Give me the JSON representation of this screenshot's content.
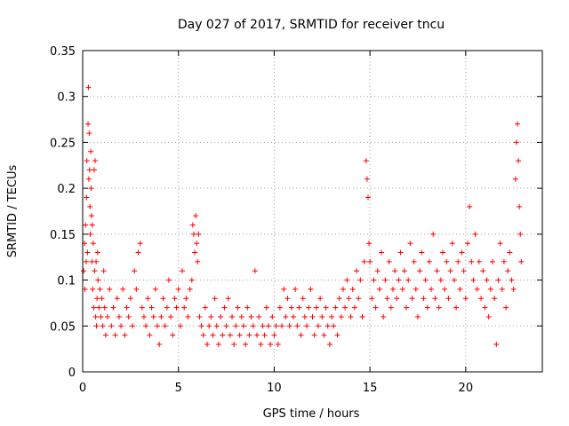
{
  "chart_data": {
    "type": "scatter",
    "title": "Day 027 of 2017, SRMTID for receiver tncu",
    "xlabel": "GPS time / hours",
    "ylabel": "SRMTID / TECUs",
    "xlim": [
      0,
      24
    ],
    "ylim": [
      0,
      0.35
    ],
    "xticks": [
      0,
      5,
      10,
      15,
      20
    ],
    "xtick_labels": [
      "0",
      "5",
      "10",
      "15",
      "20"
    ],
    "yticks": [
      0,
      0.05,
      0.1,
      0.15,
      0.2,
      0.25,
      0.3,
      0.35
    ],
    "ytick_labels": [
      "0",
      "0.05",
      "0.1",
      "0.15",
      "0.2",
      "0.25",
      "0.3",
      "0.35"
    ],
    "grid": true,
    "marker": "+",
    "color": "#ff0000",
    "series": [
      {
        "name": "SRMTID",
        "points": [
          [
            0.05,
            0.11
          ],
          [
            0.1,
            0.14
          ],
          [
            0.12,
            0.09
          ],
          [
            0.15,
            0.16
          ],
          [
            0.18,
            0.12
          ],
          [
            0.2,
            0.19
          ],
          [
            0.22,
            0.23
          ],
          [
            0.25,
            0.13
          ],
          [
            0.28,
            0.27
          ],
          [
            0.3,
            0.31
          ],
          [
            0.32,
            0.21
          ],
          [
            0.34,
            0.26
          ],
          [
            0.36,
            0.22
          ],
          [
            0.38,
            0.18
          ],
          [
            0.4,
            0.15
          ],
          [
            0.42,
            0.24
          ],
          [
            0.44,
            0.2
          ],
          [
            0.46,
            0.17
          ],
          [
            0.48,
            0.12
          ],
          [
            0.5,
            0.16
          ],
          [
            0.52,
            0.09
          ],
          [
            0.55,
            0.14
          ],
          [
            0.58,
            0.07
          ],
          [
            0.6,
            0.22
          ],
          [
            0.62,
            0.11
          ],
          [
            0.65,
            0.23
          ],
          [
            0.68,
            0.06
          ],
          [
            0.7,
            0.12
          ],
          [
            0.72,
            0.05
          ],
          [
            0.75,
            0.08
          ],
          [
            0.78,
            0.13
          ],
          [
            0.8,
            0.1
          ],
          [
            0.85,
            0.07
          ],
          [
            0.9,
            0.09
          ],
          [
            0.95,
            0.06
          ],
          [
            1.0,
            0.08
          ],
          [
            1.05,
            0.05
          ],
          [
            1.1,
            0.11
          ],
          [
            1.15,
            0.07
          ],
          [
            1.2,
            0.04
          ],
          [
            1.3,
            0.06
          ],
          [
            1.4,
            0.09
          ],
          [
            1.5,
            0.05
          ],
          [
            1.6,
            0.07
          ],
          [
            1.7,
            0.04
          ],
          [
            1.8,
            0.08
          ],
          [
            1.9,
            0.06
          ],
          [
            2.0,
            0.05
          ],
          [
            2.1,
            0.09
          ],
          [
            2.2,
            0.04
          ],
          [
            2.3,
            0.07
          ],
          [
            2.4,
            0.06
          ],
          [
            2.5,
            0.08
          ],
          [
            2.6,
            0.05
          ],
          [
            2.7,
            0.11
          ],
          [
            2.8,
            0.09
          ],
          [
            2.9,
            0.13
          ],
          [
            3.0,
            0.14
          ],
          [
            3.1,
            0.07
          ],
          [
            3.2,
            0.06
          ],
          [
            3.3,
            0.05
          ],
          [
            3.4,
            0.08
          ],
          [
            3.5,
            0.04
          ],
          [
            3.6,
            0.07
          ],
          [
            3.7,
            0.06
          ],
          [
            3.8,
            0.09
          ],
          [
            3.9,
            0.05
          ],
          [
            4.0,
            0.03
          ],
          [
            4.1,
            0.06
          ],
          [
            4.2,
            0.08
          ],
          [
            4.3,
            0.05
          ],
          [
            4.4,
            0.07
          ],
          [
            4.5,
            0.1
          ],
          [
            4.6,
            0.06
          ],
          [
            4.7,
            0.04
          ],
          [
            4.8,
            0.08
          ],
          [
            4.9,
            0.07
          ],
          [
            5.0,
            0.09
          ],
          [
            5.1,
            0.05
          ],
          [
            5.2,
            0.11
          ],
          [
            5.3,
            0.07
          ],
          [
            5.4,
            0.08
          ],
          [
            5.5,
            0.06
          ],
          [
            5.6,
            0.09
          ],
          [
            5.7,
            0.1
          ],
          [
            5.75,
            0.16
          ],
          [
            5.8,
            0.15
          ],
          [
            5.85,
            0.13
          ],
          [
            5.9,
            0.17
          ],
          [
            5.95,
            0.14
          ],
          [
            6.0,
            0.12
          ],
          [
            6.05,
            0.15
          ],
          [
            6.1,
            0.06
          ],
          [
            6.2,
            0.05
          ],
          [
            6.3,
            0.04
          ],
          [
            6.4,
            0.07
          ],
          [
            6.5,
            0.03
          ],
          [
            6.6,
            0.05
          ],
          [
            6.7,
            0.06
          ],
          [
            6.8,
            0.04
          ],
          [
            6.9,
            0.08
          ],
          [
            7.0,
            0.05
          ],
          [
            7.1,
            0.03
          ],
          [
            7.2,
            0.06
          ],
          [
            7.3,
            0.04
          ],
          [
            7.4,
            0.07
          ],
          [
            7.5,
            0.05
          ],
          [
            7.6,
            0.08
          ],
          [
            7.7,
            0.04
          ],
          [
            7.8,
            0.06
          ],
          [
            7.9,
            0.03
          ],
          [
            8.0,
            0.05
          ],
          [
            8.1,
            0.07
          ],
          [
            8.2,
            0.04
          ],
          [
            8.3,
            0.06
          ],
          [
            8.4,
            0.05
          ],
          [
            8.5,
            0.03
          ],
          [
            8.6,
            0.07
          ],
          [
            8.7,
            0.04
          ],
          [
            8.8,
            0.06
          ],
          [
            8.9,
            0.05
          ],
          [
            9.0,
            0.11
          ],
          [
            9.1,
            0.04
          ],
          [
            9.2,
            0.06
          ],
          [
            9.3,
            0.03
          ],
          [
            9.4,
            0.05
          ],
          [
            9.5,
            0.04
          ],
          [
            9.6,
            0.07
          ],
          [
            9.7,
            0.05
          ],
          [
            9.8,
            0.03
          ],
          [
            9.9,
            0.06
          ],
          [
            10.0,
            0.04
          ],
          [
            10.1,
            0.05
          ],
          [
            10.2,
            0.03
          ],
          [
            10.3,
            0.07
          ],
          [
            10.4,
            0.05
          ],
          [
            10.5,
            0.09
          ],
          [
            10.6,
            0.06
          ],
          [
            10.7,
            0.08
          ],
          [
            10.8,
            0.05
          ],
          [
            10.9,
            0.07
          ],
          [
            11.0,
            0.06
          ],
          [
            11.1,
            0.09
          ],
          [
            11.2,
            0.05
          ],
          [
            11.3,
            0.07
          ],
          [
            11.4,
            0.04
          ],
          [
            11.5,
            0.08
          ],
          [
            11.6,
            0.06
          ],
          [
            11.7,
            0.05
          ],
          [
            11.8,
            0.07
          ],
          [
            11.9,
            0.09
          ],
          [
            12.0,
            0.06
          ],
          [
            12.1,
            0.04
          ],
          [
            12.2,
            0.07
          ],
          [
            12.3,
            0.05
          ],
          [
            12.4,
            0.08
          ],
          [
            12.5,
            0.06
          ],
          [
            12.6,
            0.04
          ],
          [
            12.7,
            0.07
          ],
          [
            12.8,
            0.05
          ],
          [
            12.9,
            0.03
          ],
          [
            13.0,
            0.06
          ],
          [
            13.1,
            0.05
          ],
          [
            13.2,
            0.07
          ],
          [
            13.3,
            0.04
          ],
          [
            13.4,
            0.08
          ],
          [
            13.5,
            0.06
          ],
          [
            13.6,
            0.09
          ],
          [
            13.7,
            0.07
          ],
          [
            13.8,
            0.1
          ],
          [
            13.9,
            0.08
          ],
          [
            14.0,
            0.06
          ],
          [
            14.1,
            0.09
          ],
          [
            14.2,
            0.07
          ],
          [
            14.3,
            0.11
          ],
          [
            14.4,
            0.08
          ],
          [
            14.5,
            0.1
          ],
          [
            14.6,
            0.06
          ],
          [
            14.7,
            0.12
          ],
          [
            14.8,
            0.23
          ],
          [
            14.85,
            0.21
          ],
          [
            14.9,
            0.19
          ],
          [
            14.95,
            0.14
          ],
          [
            15.0,
            0.12
          ],
          [
            15.1,
            0.08
          ],
          [
            15.2,
            0.1
          ],
          [
            15.3,
            0.07
          ],
          [
            15.4,
            0.11
          ],
          [
            15.5,
            0.09
          ],
          [
            15.6,
            0.13
          ],
          [
            15.7,
            0.06
          ],
          [
            15.8,
            0.1
          ],
          [
            15.9,
            0.08
          ],
          [
            16.0,
            0.12
          ],
          [
            16.1,
            0.07
          ],
          [
            16.2,
            0.09
          ],
          [
            16.3,
            0.11
          ],
          [
            16.4,
            0.08
          ],
          [
            16.5,
            0.1
          ],
          [
            16.6,
            0.13
          ],
          [
            16.7,
            0.09
          ],
          [
            16.8,
            0.11
          ],
          [
            16.9,
            0.07
          ],
          [
            17.0,
            0.1
          ],
          [
            17.1,
            0.14
          ],
          [
            17.2,
            0.08
          ],
          [
            17.3,
            0.12
          ],
          [
            17.4,
            0.09
          ],
          [
            17.5,
            0.06
          ],
          [
            17.6,
            0.11
          ],
          [
            17.7,
            0.13
          ],
          [
            17.8,
            0.08
          ],
          [
            17.9,
            0.1
          ],
          [
            18.0,
            0.07
          ],
          [
            18.1,
            0.12
          ],
          [
            18.2,
            0.09
          ],
          [
            18.3,
            0.15
          ],
          [
            18.4,
            0.08
          ],
          [
            18.5,
            0.11
          ],
          [
            18.6,
            0.07
          ],
          [
            18.7,
            0.1
          ],
          [
            18.8,
            0.13
          ],
          [
            18.9,
            0.09
          ],
          [
            19.0,
            0.12
          ],
          [
            19.1,
            0.08
          ],
          [
            19.2,
            0.11
          ],
          [
            19.3,
            0.14
          ],
          [
            19.4,
            0.1
          ],
          [
            19.5,
            0.07
          ],
          [
            19.6,
            0.12
          ],
          [
            19.7,
            0.09
          ],
          [
            19.8,
            0.13
          ],
          [
            19.9,
            0.11
          ],
          [
            20.0,
            0.08
          ],
          [
            20.1,
            0.14
          ],
          [
            20.2,
            0.18
          ],
          [
            20.3,
            0.12
          ],
          [
            20.4,
            0.1
          ],
          [
            20.5,
            0.15
          ],
          [
            20.6,
            0.09
          ],
          [
            20.7,
            0.12
          ],
          [
            20.8,
            0.08
          ],
          [
            20.9,
            0.11
          ],
          [
            21.0,
            0.07
          ],
          [
            21.1,
            0.1
          ],
          [
            21.2,
            0.06
          ],
          [
            21.3,
            0.09
          ],
          [
            21.4,
            0.12
          ],
          [
            21.5,
            0.08
          ],
          [
            21.6,
            0.03
          ],
          [
            21.7,
            0.1
          ],
          [
            21.8,
            0.14
          ],
          [
            21.9,
            0.09
          ],
          [
            22.0,
            0.12
          ],
          [
            22.1,
            0.07
          ],
          [
            22.2,
            0.11
          ],
          [
            22.3,
            0.13
          ],
          [
            22.4,
            0.1
          ],
          [
            22.5,
            0.09
          ],
          [
            22.6,
            0.21
          ],
          [
            22.65,
            0.25
          ],
          [
            22.7,
            0.27
          ],
          [
            22.75,
            0.23
          ],
          [
            22.8,
            0.18
          ],
          [
            22.85,
            0.15
          ],
          [
            22.9,
            0.12
          ]
        ]
      }
    ]
  }
}
